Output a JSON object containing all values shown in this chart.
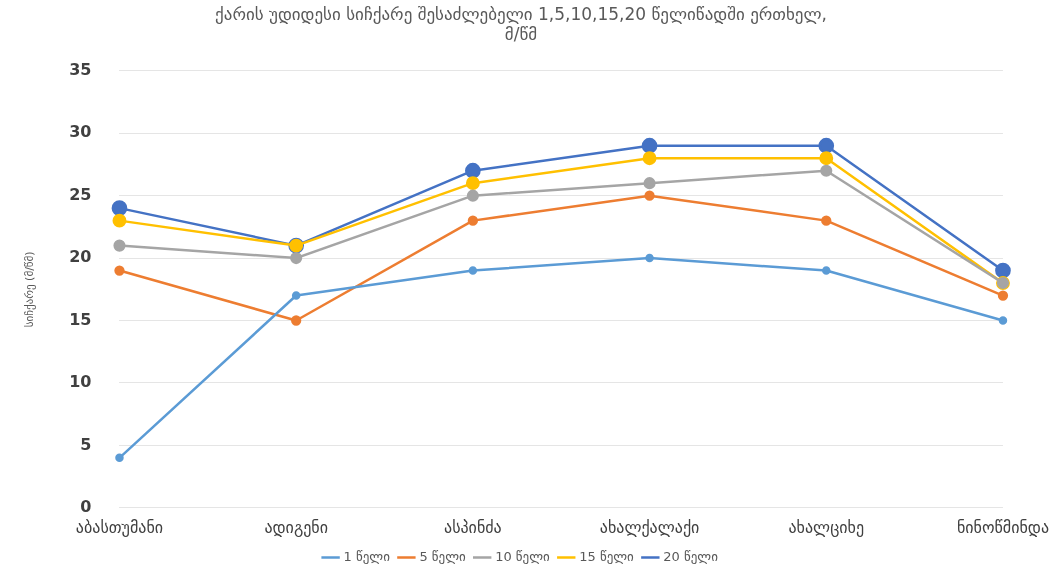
{
  "chart_data": {
    "type": "line",
    "title": "ქარის უდიდესი სიჩქარე შესაძლებელი 1,5,10,15,20 წელიწადში ერთხელ,\nმ/წმ",
    "ylabel": "სიჩქარე (მ/წმ)",
    "categories": [
      "აბასთუმანი",
      "ადიგენი",
      "ასპინძა",
      "ახალქალაქი",
      "ახალციხე",
      "ნინოწმინდა"
    ],
    "series": [
      {
        "name": "1 წელი",
        "color": "#5b9bd5",
        "values": [
          4,
          17,
          19,
          20,
          19,
          15
        ]
      },
      {
        "name": "5 წელი",
        "color": "#ed7d31",
        "values": [
          19,
          15,
          23,
          25,
          23,
          17
        ]
      },
      {
        "name": "10 წელი",
        "color": "#a5a5a5",
        "values": [
          21,
          20,
          25,
          26,
          27,
          18
        ]
      },
      {
        "name": "15 წელი",
        "color": "#ffc000",
        "values": [
          23,
          21,
          26,
          28,
          28,
          18
        ]
      },
      {
        "name": "20 წელი",
        "color": "#4472c4",
        "values": [
          24,
          21,
          27,
          29,
          29,
          19
        ]
      }
    ],
    "ylim": [
      0,
      35
    ],
    "yticks": [
      0,
      5,
      10,
      15,
      20,
      25,
      30,
      35
    ],
    "grid": "y",
    "legend": "bottom",
    "marker": "circle",
    "line_style": "solid"
  }
}
